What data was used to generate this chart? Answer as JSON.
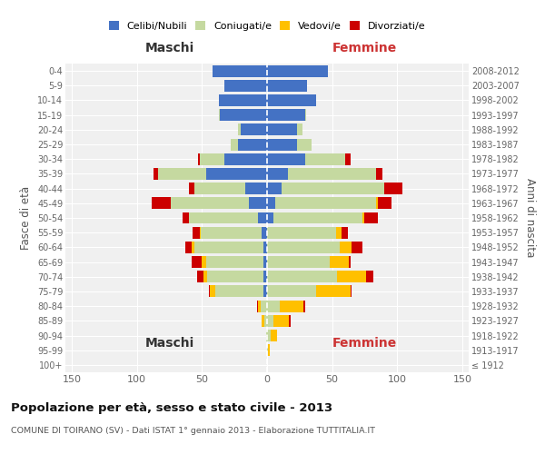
{
  "age_groups": [
    "100+",
    "95-99",
    "90-94",
    "85-89",
    "80-84",
    "75-79",
    "70-74",
    "65-69",
    "60-64",
    "55-59",
    "50-54",
    "45-49",
    "40-44",
    "35-39",
    "30-34",
    "25-29",
    "20-24",
    "15-19",
    "10-14",
    "5-9",
    "0-4"
  ],
  "birth_years": [
    "≤ 1912",
    "1913-1917",
    "1918-1922",
    "1923-1927",
    "1928-1932",
    "1933-1937",
    "1938-1942",
    "1943-1947",
    "1948-1952",
    "1953-1957",
    "1958-1962",
    "1963-1967",
    "1968-1972",
    "1973-1977",
    "1978-1982",
    "1983-1987",
    "1988-1992",
    "1993-1997",
    "1998-2002",
    "2003-2007",
    "2008-2012"
  ],
  "male": {
    "celibi": [
      0,
      0,
      0,
      0,
      0,
      3,
      3,
      3,
      3,
      4,
      7,
      14,
      17,
      47,
      33,
      22,
      20,
      36,
      37,
      33,
      42
    ],
    "coniugati": [
      0,
      0,
      1,
      2,
      5,
      37,
      43,
      44,
      53,
      47,
      53,
      60,
      39,
      37,
      19,
      6,
      2,
      1,
      0,
      0,
      0
    ],
    "vedovi": [
      0,
      0,
      0,
      2,
      2,
      4,
      3,
      3,
      2,
      1,
      0,
      0,
      0,
      0,
      0,
      0,
      0,
      0,
      0,
      0,
      0
    ],
    "divorziati": [
      0,
      0,
      0,
      0,
      1,
      1,
      5,
      8,
      5,
      5,
      5,
      15,
      4,
      3,
      1,
      0,
      0,
      0,
      0,
      0,
      0
    ]
  },
  "female": {
    "nubili": [
      0,
      0,
      0,
      0,
      0,
      0,
      0,
      0,
      0,
      0,
      5,
      6,
      11,
      16,
      29,
      23,
      23,
      29,
      38,
      31,
      47
    ],
    "coniugate": [
      0,
      1,
      3,
      5,
      10,
      38,
      54,
      48,
      56,
      53,
      68,
      78,
      79,
      68,
      31,
      11,
      4,
      1,
      0,
      0,
      0
    ],
    "vedove": [
      0,
      1,
      5,
      12,
      18,
      26,
      22,
      15,
      9,
      4,
      2,
      1,
      0,
      0,
      0,
      0,
      0,
      0,
      0,
      0,
      0
    ],
    "divorziate": [
      0,
      0,
      0,
      1,
      1,
      1,
      6,
      1,
      8,
      5,
      10,
      11,
      14,
      5,
      4,
      0,
      0,
      0,
      0,
      0,
      0
    ]
  },
  "colors": {
    "celibi": "#4472c4",
    "coniugati": "#c5d9a0",
    "vedovi": "#ffc000",
    "divorziati": "#cc0000"
  },
  "xlim": 155,
  "title": "Popolazione per età, sesso e stato civile - 2013",
  "subtitle": "COMUNE DI TOIRANO (SV) - Dati ISTAT 1° gennaio 2013 - Elaborazione TUTTITALIA.IT",
  "ylabel_left": "Fasce di età",
  "ylabel_right": "Anni di nascita",
  "xlabel_left": "Maschi",
  "xlabel_right": "Femmine"
}
